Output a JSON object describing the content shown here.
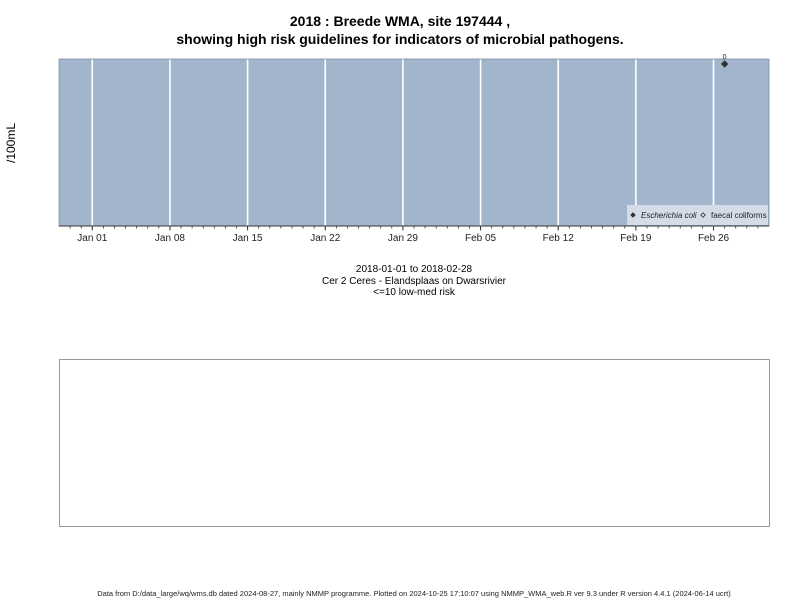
{
  "title_line1": "2018 : Breede WMA, site 197444 ,",
  "title_line2": "showing high risk guidelines for indicators of microbial pathogens.",
  "caption": {
    "date_range": "2018-01-01 to 2018-02-28",
    "site_name": "Cer 2 Ceres - Elandsplaas on Dwarsrivier",
    "risk": "<=10 low-med risk"
  },
  "footer": "Data from D:/data_large/wq/wms.db dated 2024-08-27, mainly NMMP programme. Plotted on 2024-10-25 17:10:07 using NMMP_WMA_web.R ver 9.3 under R version 4.4.1 (2024-06-14 ucrt)",
  "chart_data": {
    "type": "scatter",
    "x_axis": {
      "type": "date",
      "range": [
        "2017-12-29",
        "2018-03-03"
      ],
      "tick_labels": [
        "Jan 01",
        "Jan 08",
        "Jan 15",
        "Jan 22",
        "Jan 29",
        "Feb 05",
        "Feb 12",
        "Feb 19",
        "Feb 26"
      ],
      "tick_dates": [
        "2018-01-01",
        "2018-01-08",
        "2018-01-15",
        "2018-01-22",
        "2018-01-29",
        "2018-02-05",
        "2018-02-12",
        "2018-02-19",
        "2018-02-26"
      ]
    },
    "ylabel": "/100mL",
    "grid": true,
    "background_color": "#a3b5cc",
    "legend_placement": "bottom-right",
    "series": [
      {
        "name": "Escherichia coli",
        "marker": "filled-diamond",
        "color": "#333333",
        "points": [
          {
            "x": "2018-02-27",
            "y": 0,
            "label": "0"
          }
        ]
      },
      {
        "name": "faecal coliforms",
        "marker": "open-diamond",
        "color": "#333333",
        "points": []
      }
    ]
  }
}
